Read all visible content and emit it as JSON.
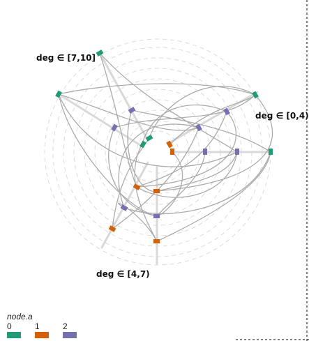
{
  "axes": [
    {
      "label": "deg ∈ [0,4)",
      "nodes": [
        {
          "group": 0,
          "color": "#1b9e77"
        },
        {
          "group": 2,
          "color": "#7570b3"
        },
        {
          "group": 2,
          "color": "#7570b3"
        },
        {
          "group": 1,
          "color": "#d95f02"
        }
      ]
    },
    {
      "label": "deg ∈ [0,4)",
      "nodes": [
        {
          "group": 0,
          "color": "#1b9e77"
        },
        {
          "group": 2,
          "color": "#7570b3"
        },
        {
          "group": 2,
          "color": "#7570b3"
        }
      ]
    },
    {
      "label": "deg ∈ [4,7)",
      "nodes": [
        {
          "group": 1,
          "color": "#d95f02"
        },
        {
          "group": 2,
          "color": "#7570b3"
        },
        {
          "group": 1,
          "color": "#d95f02"
        }
      ]
    },
    {
      "label": "deg ∈ [4,7)",
      "nodes": [
        {
          "group": 1,
          "color": "#d95f02"
        },
        {
          "group": 2,
          "color": "#7570b3"
        },
        {
          "group": 1,
          "color": "#d95f02"
        }
      ]
    },
    {
      "label": "deg ∈ [7,10]",
      "nodes": [
        {
          "group": 0,
          "color": "#1b9e77"
        },
        {
          "group": 2,
          "color": "#7570b3"
        },
        {
          "group": 0,
          "color": "#1b9e77"
        }
      ]
    },
    {
      "label": "deg ∈ [7,10]",
      "nodes": [
        {
          "group": 0,
          "color": "#1b9e77"
        },
        {
          "group": 2,
          "color": "#7570b3"
        },
        {
          "group": 0,
          "color": "#1b9e77"
        }
      ]
    }
  ],
  "axis_labels": {
    "a": "deg ∈ [0,4)",
    "b": "deg ∈ [4,7)",
    "c": "deg ∈ [7,10]"
  },
  "legend": {
    "title": "node.a",
    "items": [
      {
        "label": "0",
        "color": "#1b9e77"
      },
      {
        "label": "1",
        "color": "#d95f02"
      },
      {
        "label": "2",
        "color": "#7570b3"
      }
    ]
  },
  "colors": {
    "edge": "#a8a8a8",
    "axis": "#d9d9d9",
    "grid": "#dcdcdc",
    "frame": "#333333"
  }
}
